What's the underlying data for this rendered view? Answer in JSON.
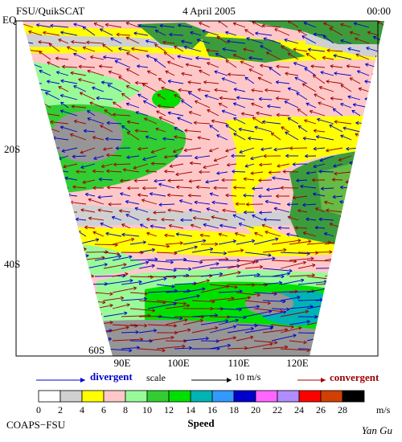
{
  "header": {
    "source": "FSU/QuikSCAT",
    "date": "4 April 2005",
    "time": "00:00"
  },
  "lat_labels": [
    "EQ",
    "20S",
    "40S",
    "60S"
  ],
  "lon_labels": [
    "90E",
    "100E",
    "110E",
    "120E"
  ],
  "legend": {
    "divergent": "divergent",
    "scale": "scale",
    "scale_value": "10 m/s",
    "convergent": "convergent"
  },
  "colorbar": {
    "ticks": [
      "0",
      "2",
      "4",
      "6",
      "8",
      "10",
      "12",
      "14",
      "16",
      "18",
      "20",
      "22",
      "24",
      "26",
      "28"
    ],
    "unit": "m/s",
    "title": "Speed"
  },
  "footer": {
    "left": "COAPS−FSU",
    "right": "Yan Gu"
  }
}
